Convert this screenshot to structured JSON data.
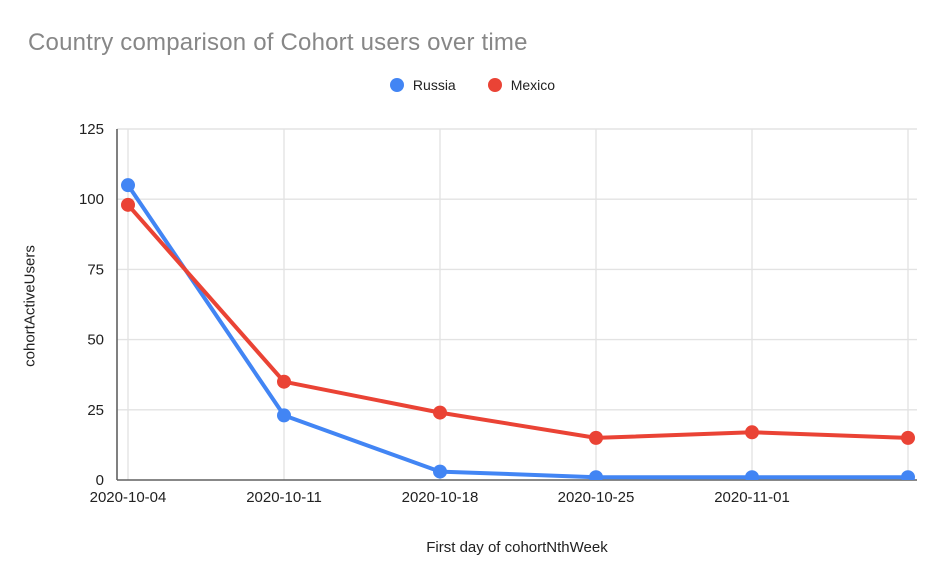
{
  "chart_data": {
    "type": "line",
    "title": "Country comparison of Cohort users over time",
    "categories": [
      "2020-10-04",
      "2020-10-11",
      "2020-10-18",
      "2020-10-25",
      "2020-11-01",
      ""
    ],
    "series": [
      {
        "name": "Russia",
        "color": "#4285F4",
        "values": [
          105,
          23,
          3,
          1,
          1,
          1
        ]
      },
      {
        "name": "Mexico",
        "color": "#EA4335",
        "values": [
          98,
          35,
          24,
          15,
          17,
          15
        ]
      }
    ],
    "xlabel": "First day of cohortNthWeek",
    "ylabel": "cohortActiveUsers",
    "ylim": [
      0,
      125
    ],
    "y_ticks": [
      0,
      25,
      50,
      75,
      100,
      125
    ],
    "grid": true,
    "legend_position": "top",
    "title_color": "#878787",
    "axis_color": "#616161",
    "grid_color": "#e3e3e3",
    "tick_label_color": "#212121",
    "marker_radius": 7,
    "line_width": 4
  }
}
